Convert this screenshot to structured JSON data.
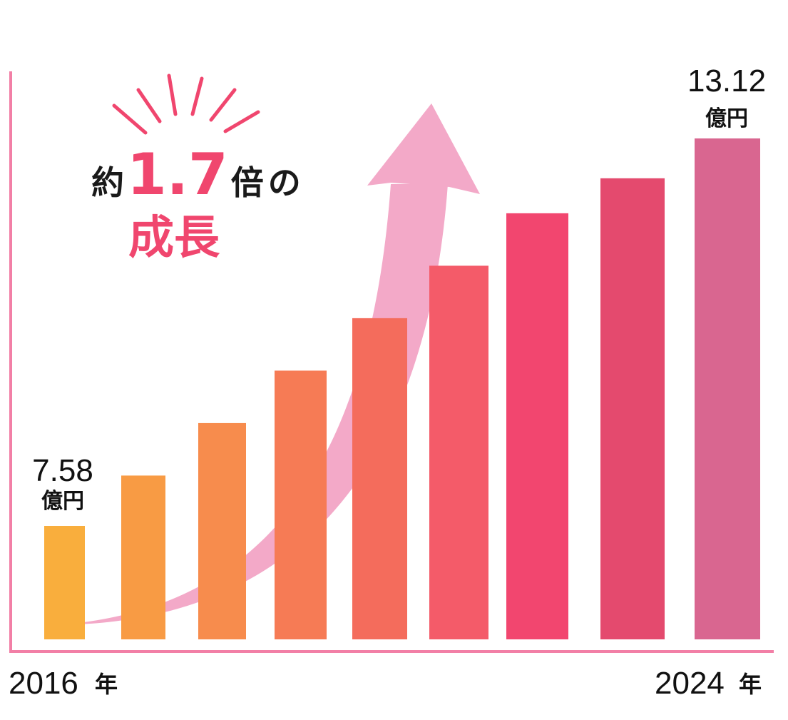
{
  "chart_data": {
    "type": "bar",
    "title": "",
    "xlabel": "",
    "ylabel": "",
    "series": [
      {
        "values": [
          7.58,
          8.3,
          9.05,
          9.8,
          10.55,
          11.3,
          12.05,
          12.55,
          13.12
        ]
      }
    ],
    "first_label": {
      "value": "7.58",
      "unit": "億円"
    },
    "last_label": {
      "value": "13.12",
      "unit": "億円"
    },
    "x_start": {
      "year": "2016",
      "unit": "年"
    },
    "x_end": {
      "year": "2024",
      "unit": "年"
    },
    "ylim": [
      0,
      15
    ],
    "grid": false,
    "legend": "none",
    "bar_colors": [
      "#f9ae3d",
      "#f89b44",
      "#f78c4d",
      "#f67b55",
      "#f46c5c",
      "#f45b69",
      "#f2466f",
      "#e44a6e",
      "#d96690"
    ],
    "axis_color": "#f27fa6",
    "arrow_color": "#f3a9c8"
  },
  "callout": {
    "prefix": "約",
    "number": "1.7",
    "mid": "倍",
    "suffix": "の",
    "line2": "成長",
    "accent_color": "#f0466e"
  }
}
